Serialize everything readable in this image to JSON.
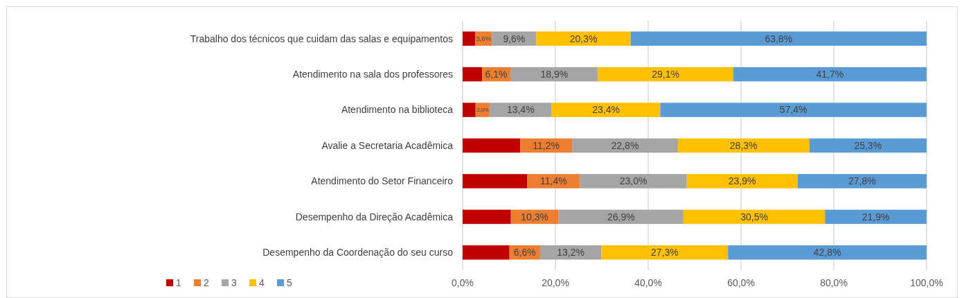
{
  "chart_data": {
    "type": "bar",
    "orientation": "horizontal",
    "stacked": true,
    "categories": [
      "Trabalho dos técnicos que cuidam das salas e equipamentos",
      "Atendimento na sala dos professores",
      "Atendimento na biblioteca",
      "Avalie a Secretaria Acadêmica",
      "Atendimento do Setor Financeiro",
      "Desempenho da Direção Acadêmica",
      "Desempenho da Coordenação do seu curso"
    ],
    "series": [
      {
        "name": "1",
        "color": "#c00000",
        "values": [
          2.7,
          4.2,
          2.8,
          12.4,
          13.9,
          10.4,
          10.1
        ],
        "value_labels": [
          null,
          null,
          null,
          null,
          null,
          null,
          null
        ]
      },
      {
        "name": "2",
        "color": "#ed7d31",
        "values": [
          3.6,
          6.1,
          3.0,
          11.2,
          11.4,
          10.3,
          6.6
        ],
        "value_labels": [
          "3,6%",
          "6,1%",
          "3,0%",
          "11,2%",
          "11,4%",
          "10,3%",
          "6,6%"
        ]
      },
      {
        "name": "3",
        "color": "#a5a5a5",
        "values": [
          9.6,
          18.9,
          13.4,
          22.8,
          23.0,
          26.9,
          13.2
        ],
        "value_labels": [
          "9,6%",
          "18,9%",
          "13,4%",
          "22,8%",
          "23,0%",
          "26,9%",
          "13,2%"
        ]
      },
      {
        "name": "4",
        "color": "#ffc000",
        "values": [
          20.3,
          29.1,
          23.4,
          28.3,
          23.9,
          30.5,
          27.3
        ],
        "value_labels": [
          "20,3%",
          "29,1%",
          "23,4%",
          "28,3%",
          "23,9%",
          "30,5%",
          "27,3%"
        ]
      },
      {
        "name": "5",
        "color": "#5b9bd5",
        "values": [
          63.8,
          41.7,
          57.4,
          25.3,
          27.8,
          21.9,
          42.8
        ],
        "value_labels": [
          "63,8%",
          "41,7%",
          "57,4%",
          "25,3%",
          "27,8%",
          "21,9%",
          "42,8%"
        ]
      }
    ],
    "xlim": [
      0,
      100
    ],
    "xticks": [
      {
        "value": 0,
        "label": "0,0%"
      },
      {
        "value": 20,
        "label": "20,0%"
      },
      {
        "value": 40,
        "label": "40,0%"
      },
      {
        "value": 60,
        "label": "60,0%"
      },
      {
        "value": 80,
        "label": "80,0%"
      },
      {
        "value": 100,
        "label": "100,0%"
      }
    ],
    "grid": "x",
    "legend": "bottom left"
  }
}
